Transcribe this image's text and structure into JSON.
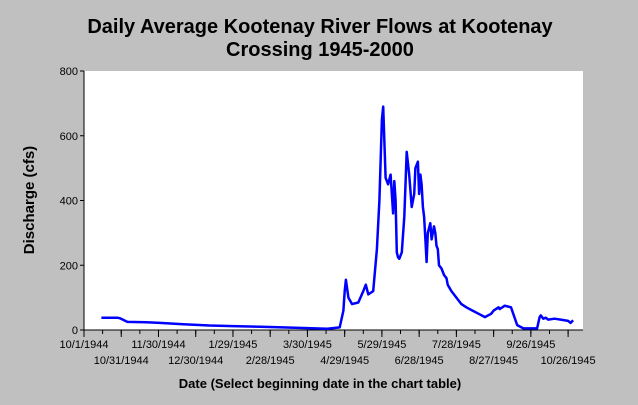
{
  "chart_data": {
    "type": "line",
    "title_line1": "Daily Average Kootenay River Flows at Kootenay",
    "title_line2": "Crossing 1945-2000",
    "xlabel": "Date (Select beginning date in the chart table)",
    "ylabel": "Discharge (cfs)",
    "xlim": [
      "1944-10-01",
      "1945-11-07"
    ],
    "ylim": [
      0,
      800
    ],
    "yticks": [
      0,
      200,
      400,
      600,
      800
    ],
    "xticks_top": [
      "10/1/1944",
      "11/30/1944",
      "1/29/1945",
      "3/30/1945",
      "5/29/1945",
      "7/28/1945",
      "9/26/1945"
    ],
    "xticks_bottom": [
      "10/31/1944",
      "12/30/1944",
      "2/28/1945",
      "4/29/1945",
      "6/28/1945",
      "8/27/1945",
      "10/26/1945"
    ],
    "xticks_top_dates": [
      "1944-10-01",
      "1944-11-30",
      "1945-01-29",
      "1945-03-30",
      "1945-05-29",
      "1945-07-28",
      "1945-09-26"
    ],
    "xticks_bottom_dates": [
      "1944-10-31",
      "1944-12-30",
      "1945-02-28",
      "1945-04-29",
      "1945-06-28",
      "1945-08-27",
      "1945-10-26"
    ],
    "grid": false,
    "line_color": "#0000ff",
    "series": [
      {
        "x": [
          "1944-10-15",
          "1944-10-28",
          "1944-10-30",
          "1944-11-05",
          "1944-11-20",
          "1944-12-01",
          "1944-12-20",
          "1945-01-10",
          "1945-01-29",
          "1945-02-20",
          "1945-03-10",
          "1945-03-30",
          "1945-04-15",
          "1945-04-25",
          "1945-04-28",
          "1945-04-29",
          "1945-04-30",
          "1945-05-02",
          "1945-05-05",
          "1945-05-10",
          "1945-05-14",
          "1945-05-16",
          "1945-05-18",
          "1945-05-22",
          "1945-05-25",
          "1945-05-27",
          "1945-05-29",
          "1945-05-30",
          "1945-06-01",
          "1945-06-03",
          "1945-06-05",
          "1945-06-07",
          "1945-06-08",
          "1945-06-09",
          "1945-06-10",
          "1945-06-11",
          "1945-06-12",
          "1945-06-14",
          "1945-06-16",
          "1945-06-18",
          "1945-06-20",
          "1945-06-22",
          "1945-06-24",
          "1945-06-25",
          "1945-06-27",
          "1945-06-28",
          "1945-06-29",
          "1945-06-30",
          "1945-07-01",
          "1945-07-02",
          "1945-07-03",
          "1945-07-04",
          "1945-07-05",
          "1945-07-07",
          "1945-07-08",
          "1945-07-10",
          "1945-07-11",
          "1945-07-12",
          "1945-07-13",
          "1945-07-14",
          "1945-07-16",
          "1945-07-18",
          "1945-07-20",
          "1945-07-21",
          "1945-07-24",
          "1945-07-28",
          "1945-08-01",
          "1945-08-05",
          "1945-08-10",
          "1945-08-15",
          "1945-08-20",
          "1945-08-25",
          "1945-08-27",
          "1945-08-31",
          "1945-09-01",
          "1945-09-05",
          "1945-09-10",
          "1945-09-15",
          "1945-09-20",
          "1945-09-26",
          "1945-09-27",
          "1945-09-29",
          "1945-10-01",
          "1945-10-03",
          "1945-10-04",
          "1945-10-06",
          "1945-10-08",
          "1945-10-10",
          "1945-10-15",
          "1945-10-20",
          "1945-10-26",
          "1945-10-28",
          "1945-10-30"
        ],
        "y": [
          38,
          38,
          36,
          25,
          24,
          22,
          18,
          14,
          12,
          10,
          8,
          6,
          4,
          8,
          60,
          120,
          155,
          100,
          80,
          85,
          120,
          140,
          110,
          120,
          250,
          400,
          650,
          690,
          470,
          450,
          480,
          360,
          460,
          400,
          240,
          225,
          220,
          240,
          350,
          550,
          480,
          380,
          420,
          500,
          520,
          420,
          480,
          450,
          380,
          350,
          280,
          210,
          300,
          330,
          280,
          320,
          300,
          260,
          250,
          200,
          190,
          170,
          160,
          140,
          120,
          100,
          80,
          70,
          60,
          50,
          40,
          50,
          60,
          70,
          65,
          75,
          70,
          15,
          5,
          5,
          5,
          5,
          5,
          40,
          45,
          35,
          38,
          32,
          35,
          32,
          28,
          22,
          30
        ]
      }
    ]
  }
}
